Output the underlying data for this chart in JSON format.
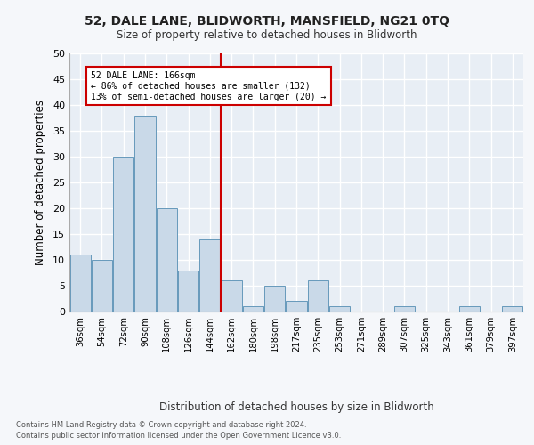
{
  "title1": "52, DALE LANE, BLIDWORTH, MANSFIELD, NG21 0TQ",
  "title2": "Size of property relative to detached houses in Blidworth",
  "xlabel": "Distribution of detached houses by size in Blidworth",
  "ylabel": "Number of detached properties",
  "categories": [
    "36sqm",
    "54sqm",
    "72sqm",
    "90sqm",
    "108sqm",
    "126sqm",
    "144sqm",
    "162sqm",
    "180sqm",
    "198sqm",
    "217sqm",
    "235sqm",
    "253sqm",
    "271sqm",
    "289sqm",
    "307sqm",
    "325sqm",
    "343sqm",
    "361sqm",
    "379sqm",
    "397sqm"
  ],
  "values": [
    11,
    10,
    30,
    38,
    20,
    8,
    14,
    6,
    1,
    5,
    2,
    6,
    1,
    0,
    0,
    1,
    0,
    0,
    1,
    0,
    1
  ],
  "bar_color": "#c9d9e8",
  "bar_edge_color": "#6699bb",
  "vline_index": 7,
  "vline_color": "#cc0000",
  "annotation_lines": [
    "52 DALE LANE: 166sqm",
    "← 86% of detached houses are smaller (132)",
    "13% of semi-detached houses are larger (20) →"
  ],
  "ylim": [
    0,
    50
  ],
  "yticks": [
    0,
    5,
    10,
    15,
    20,
    25,
    30,
    35,
    40,
    45,
    50
  ],
  "background_color": "#e8eef5",
  "grid_color": "#ffffff",
  "fig_bg_color": "#f5f7fa",
  "footer_line1": "Contains HM Land Registry data © Crown copyright and database right 2024.",
  "footer_line2": "Contains public sector information licensed under the Open Government Licence v3.0."
}
